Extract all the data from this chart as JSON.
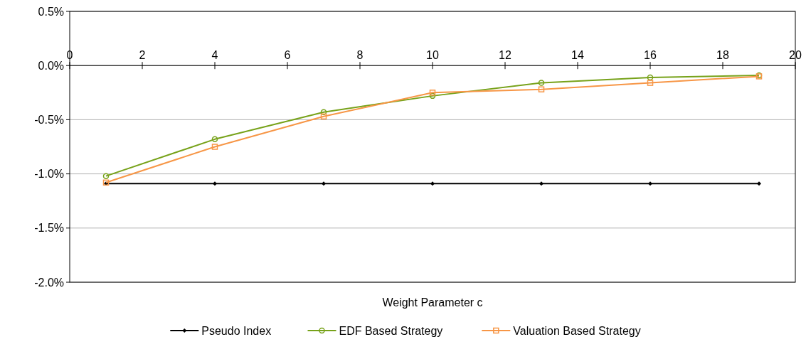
{
  "chart_data": {
    "type": "line",
    "xlabel": "Weight Parameter c",
    "x": [
      1,
      4,
      7,
      10,
      13,
      16,
      19
    ],
    "series": [
      {
        "name": "Pseudo Index",
        "color": "#000000",
        "marker": "diamond",
        "values": [
          -1.09,
          -1.09,
          -1.09,
          -1.09,
          -1.09,
          -1.09,
          -1.09
        ]
      },
      {
        "name": "EDF Based Strategy",
        "color": "#77a21a",
        "marker": "circle",
        "values": [
          -1.02,
          -0.68,
          -0.43,
          -0.28,
          -0.16,
          -0.11,
          -0.09
        ]
      },
      {
        "name": "Valuation Based Strategy",
        "color": "#f79646",
        "marker": "square",
        "values": [
          -1.08,
          -0.75,
          -0.47,
          -0.25,
          -0.22,
          -0.16,
          -0.1
        ]
      }
    ],
    "xlim": [
      0,
      20
    ],
    "xticks": [
      0,
      2,
      4,
      6,
      8,
      10,
      12,
      14,
      16,
      18,
      20
    ],
    "ylim": [
      -2,
      0.5
    ],
    "yticks": [
      {
        "value": -2,
        "label": "-2.0%"
      },
      {
        "value": -1.5,
        "label": "-1.5%"
      },
      {
        "value": -1,
        "label": "-1.0%"
      },
      {
        "value": -0.5,
        "label": "-0.5%"
      },
      {
        "value": 0,
        "label": "0.0%"
      },
      {
        "value": 0.5,
        "label": "0.5%"
      }
    ],
    "grid": "y",
    "legend": "bottom"
  }
}
